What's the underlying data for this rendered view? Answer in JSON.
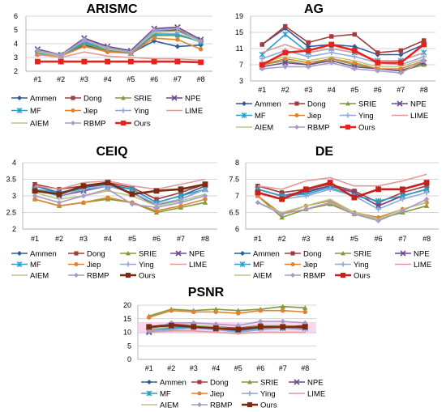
{
  "chart_data": [
    {
      "type": "line",
      "title": "ARISMC",
      "categories": [
        "#1",
        "#2",
        "#3",
        "#4",
        "#5",
        "#6",
        "#7",
        "#8"
      ],
      "ylim": [
        2,
        6
      ],
      "yticks": [
        2,
        3,
        4,
        5,
        6
      ],
      "grid": true,
      "legend": "bottom",
      "series": [
        {
          "name": "Ammen",
          "values": [
            3.3,
            3.1,
            3.9,
            3.5,
            3.3,
            4.2,
            3.8,
            3.9
          ]
        },
        {
          "name": "Dong",
          "values": [
            3.4,
            3.15,
            4.2,
            3.6,
            3.4,
            4.9,
            5.0,
            4.2
          ]
        },
        {
          "name": "SRIE",
          "values": [
            3.3,
            3.1,
            4.0,
            3.5,
            3.3,
            4.6,
            4.6,
            4.2
          ]
        },
        {
          "name": "NPE",
          "values": [
            3.6,
            3.2,
            4.4,
            3.8,
            3.5,
            5.1,
            5.2,
            4.3
          ]
        },
        {
          "name": "MF",
          "values": [
            3.3,
            3.1,
            4.1,
            3.6,
            3.3,
            4.7,
            4.7,
            4.1
          ]
        },
        {
          "name": "Jiep",
          "values": [
            3.2,
            3.1,
            3.8,
            3.4,
            3.3,
            4.4,
            4.3,
            3.6
          ]
        },
        {
          "name": "Ying",
          "values": [
            3.5,
            3.2,
            4.2,
            3.7,
            3.4,
            4.9,
            4.9,
            4.2
          ]
        },
        {
          "name": "LIME",
          "values": [
            3.2,
            3.0,
            3.4,
            3.1,
            3.0,
            2.9,
            2.9,
            2.8
          ]
        },
        {
          "name": "AIEM",
          "values": [
            3.4,
            3.1,
            4.3,
            3.6,
            3.4,
            4.8,
            4.9,
            4.1
          ]
        },
        {
          "name": "RBMP",
          "values": [
            3.5,
            3.15,
            4.3,
            3.7,
            3.4,
            5.0,
            5.1,
            4.2
          ]
        },
        {
          "name": "Ours",
          "values": [
            2.7,
            2.7,
            2.7,
            2.7,
            2.7,
            2.7,
            2.7,
            2.65
          ]
        }
      ]
    },
    {
      "type": "line",
      "title": "AG",
      "categories": [
        "#1",
        "#2",
        "#3",
        "#4",
        "#5",
        "#6",
        "#7",
        "#8"
      ],
      "ylim": [
        3,
        19
      ],
      "yticks": [
        3,
        7,
        11,
        15,
        19
      ],
      "grid": true,
      "legend": "bottom",
      "series": [
        {
          "name": "Ammen",
          "values": [
            12.0,
            16.0,
            11.5,
            12.0,
            11.5,
            9.5,
            9.5,
            12.0
          ]
        },
        {
          "name": "Dong",
          "values": [
            12.0,
            16.5,
            12.5,
            14.0,
            14.5,
            10.0,
            10.5,
            13.0
          ]
        },
        {
          "name": "SRIE",
          "values": [
            7.0,
            8.0,
            7.0,
            8.5,
            7.0,
            6.0,
            5.5,
            7.0
          ]
        },
        {
          "name": "NPE",
          "values": [
            6.5,
            7.5,
            7.0,
            8.0,
            6.5,
            6.0,
            5.5,
            7.5
          ]
        },
        {
          "name": "MF",
          "values": [
            9.5,
            14.5,
            10.0,
            11.0,
            10.0,
            8.0,
            8.0,
            10.0
          ]
        },
        {
          "name": "Jiep",
          "values": [
            7.0,
            8.5,
            7.5,
            8.5,
            7.5,
            6.0,
            6.0,
            8.0
          ]
        },
        {
          "name": "Ying",
          "values": [
            8.5,
            10.5,
            9.0,
            10.0,
            9.0,
            7.5,
            7.0,
            9.0
          ]
        },
        {
          "name": "LIME",
          "values": [
            10.0,
            12.0,
            10.0,
            11.0,
            10.0,
            8.0,
            8.0,
            10.0
          ]
        },
        {
          "name": "AIEM",
          "values": [
            7.5,
            9.0,
            8.0,
            9.0,
            8.0,
            6.5,
            6.5,
            8.5
          ]
        },
        {
          "name": "RBMP",
          "values": [
            6.0,
            6.5,
            6.5,
            7.5,
            6.0,
            5.5,
            5.0,
            8.0
          ]
        },
        {
          "name": "Ours",
          "values": [
            7.0,
            10.0,
            10.5,
            12.0,
            10.5,
            7.5,
            7.5,
            12.0
          ]
        }
      ]
    },
    {
      "type": "line",
      "title": "CEIQ",
      "categories": [
        "#1",
        "#2",
        "#3",
        "#4",
        "#5",
        "#6",
        "#7",
        "#8"
      ],
      "ylim": [
        2,
        4
      ],
      "yticks": [
        2,
        2.5,
        3,
        3.5,
        4
      ],
      "grid": true,
      "legend": "bottom",
      "series": [
        {
          "name": "Ammen",
          "values": [
            3.3,
            3.1,
            3.25,
            3.35,
            3.2,
            2.8,
            3.0,
            3.3
          ]
        },
        {
          "name": "Dong",
          "values": [
            3.35,
            3.2,
            3.3,
            3.4,
            3.25,
            2.9,
            3.1,
            3.35
          ]
        },
        {
          "name": "SRIE",
          "values": [
            2.9,
            2.7,
            2.8,
            2.9,
            2.8,
            2.5,
            2.65,
            2.8
          ]
        },
        {
          "name": "NPE",
          "values": [
            3.2,
            3.0,
            3.15,
            3.3,
            3.1,
            2.7,
            2.9,
            3.2
          ]
        },
        {
          "name": "MF",
          "values": [
            3.2,
            3.1,
            3.2,
            3.3,
            3.2,
            2.8,
            3.0,
            3.2
          ]
        },
        {
          "name": "Jiep",
          "values": [
            2.9,
            2.7,
            2.8,
            2.95,
            2.8,
            2.55,
            2.7,
            2.9
          ]
        },
        {
          "name": "Ying",
          "values": [
            3.2,
            3.0,
            3.2,
            3.3,
            3.1,
            2.75,
            2.9,
            3.2
          ]
        },
        {
          "name": "LIME",
          "values": [
            3.3,
            3.2,
            3.4,
            3.45,
            3.3,
            3.2,
            3.35,
            3.5
          ]
        },
        {
          "name": "AIEM",
          "values": [
            3.1,
            2.9,
            3.0,
            3.15,
            3.0,
            2.7,
            2.85,
            3.05
          ]
        },
        {
          "name": "RBMP",
          "values": [
            3.0,
            2.8,
            3.0,
            3.2,
            2.75,
            2.65,
            2.8,
            3.0
          ]
        },
        {
          "name": "Ours",
          "values": [
            3.15,
            3.05,
            3.3,
            3.4,
            3.05,
            3.15,
            3.2,
            3.35
          ]
        }
      ]
    },
    {
      "type": "line",
      "title": "DE",
      "categories": [
        "#1",
        "#2",
        "#3",
        "#4",
        "#5",
        "#6",
        "#7",
        "#8"
      ],
      "ylim": [
        6,
        8
      ],
      "yticks": [
        6,
        6.5,
        7,
        7.5,
        8
      ],
      "grid": true,
      "legend": "bottom",
      "series": [
        {
          "name": "Ammen",
          "values": [
            7.2,
            7.0,
            7.1,
            7.3,
            7.1,
            6.7,
            7.0,
            7.2
          ]
        },
        {
          "name": "Dong",
          "values": [
            7.3,
            7.1,
            7.2,
            7.35,
            7.15,
            6.8,
            7.1,
            7.3
          ]
        },
        {
          "name": "SRIE",
          "values": [
            7.0,
            6.35,
            6.6,
            6.75,
            6.45,
            6.3,
            6.5,
            6.7
          ]
        },
        {
          "name": "NPE",
          "values": [
            7.2,
            7.0,
            7.15,
            7.3,
            7.1,
            6.7,
            7.0,
            7.2
          ]
        },
        {
          "name": "MF",
          "values": [
            7.2,
            7.0,
            7.05,
            7.25,
            7.0,
            6.85,
            7.0,
            7.2
          ]
        },
        {
          "name": "Jiep",
          "values": [
            7.0,
            6.45,
            6.7,
            6.85,
            6.5,
            6.35,
            6.6,
            6.8
          ]
        },
        {
          "name": "Ying",
          "values": [
            7.1,
            6.9,
            7.0,
            7.2,
            7.0,
            6.6,
            6.9,
            7.1
          ]
        },
        {
          "name": "LIME",
          "values": [
            7.3,
            7.2,
            7.45,
            7.55,
            7.3,
            7.3,
            7.45,
            7.65
          ]
        },
        {
          "name": "AIEM",
          "values": [
            6.8,
            6.5,
            6.7,
            6.9,
            6.5,
            6.3,
            6.6,
            6.8
          ]
        },
        {
          "name": "RBMP",
          "values": [
            6.8,
            6.45,
            6.6,
            6.8,
            6.45,
            6.25,
            6.55,
            6.9
          ]
        },
        {
          "name": "Ours",
          "values": [
            7.1,
            6.9,
            7.2,
            7.4,
            6.95,
            7.2,
            7.2,
            7.4
          ]
        }
      ]
    },
    {
      "type": "line",
      "title": "PSNR",
      "categories": [
        "#1",
        "#2",
        "#3",
        "#4",
        "#5",
        "#6",
        "#7",
        "#8"
      ],
      "ylim": [
        0,
        20
      ],
      "yticks": [
        0,
        5,
        10,
        15,
        20
      ],
      "grid": true,
      "legend": "bottom",
      "series": [
        {
          "name": "Ammen",
          "values": [
            10.5,
            12.0,
            12.0,
            11.0,
            11.0,
            12.0,
            12.0,
            11.5
          ]
        },
        {
          "name": "Dong",
          "values": [
            12.0,
            13.0,
            12.5,
            12.0,
            11.5,
            12.5,
            12.0,
            12.5
          ]
        },
        {
          "name": "SRIE",
          "values": [
            16.0,
            18.5,
            18.0,
            18.5,
            18.0,
            18.5,
            19.5,
            19.0
          ]
        },
        {
          "name": "NPE",
          "values": [
            10.0,
            12.5,
            12.5,
            11.5,
            10.5,
            12.0,
            12.0,
            12.0
          ]
        },
        {
          "name": "MF",
          "values": [
            10.5,
            11.5,
            12.0,
            11.0,
            10.5,
            11.5,
            11.5,
            11.5
          ]
        },
        {
          "name": "Jiep",
          "values": [
            15.5,
            18.0,
            17.5,
            17.5,
            17.0,
            18.0,
            18.0,
            17.5
          ]
        },
        {
          "name": "Ying",
          "values": [
            10.5,
            11.0,
            11.5,
            11.0,
            10.0,
            11.0,
            11.5,
            11.0
          ]
        },
        {
          "name": "LIME",
          "values": [
            10.0,
            10.5,
            10.5,
            10.0,
            9.5,
            10.0,
            10.0,
            10.0
          ]
        },
        {
          "name": "AIEM",
          "values": [
            11.0,
            12.0,
            12.5,
            12.0,
            11.0,
            12.5,
            12.5,
            12.0
          ]
        },
        {
          "name": "RBMP",
          "values": [
            11.0,
            13.5,
            13.5,
            13.0,
            12.5,
            14.0,
            14.0,
            13.5
          ]
        },
        {
          "name": "Ours",
          "values": [
            12.0,
            12.5,
            12.0,
            11.5,
            11.0,
            12.0,
            12.0,
            12.0
          ]
        }
      ]
    }
  ],
  "series_styles": {
    "Ammen": {
      "color": "#2E5C9A",
      "marker": "diamond"
    },
    "Dong": {
      "color": "#A33B3B",
      "marker": "square"
    },
    "SRIE": {
      "color": "#7E9A3A",
      "marker": "triangle"
    },
    "NPE": {
      "color": "#6B4A8E",
      "marker": "x"
    },
    "MF": {
      "color": "#2E9FC6",
      "marker": "star"
    },
    "Jiep": {
      "color": "#E0822E",
      "marker": "circle"
    },
    "Ying": {
      "color": "#8FA9D8",
      "marker": "plus"
    },
    "LIME": {
      "color": "#E09A9A",
      "marker": "none"
    },
    "AIEM": {
      "color": "#B6C98A",
      "marker": "none"
    },
    "RBMP": {
      "color": "#A99BC4",
      "marker": "diamond"
    },
    "Ours": {
      "color": "#E8231E",
      "marker": "square"
    }
  },
  "ours_color_overrides": {
    "CEIQ": "#7A2B12",
    "DE": "#C8211B",
    "PSNR": "#7A2B12"
  }
}
